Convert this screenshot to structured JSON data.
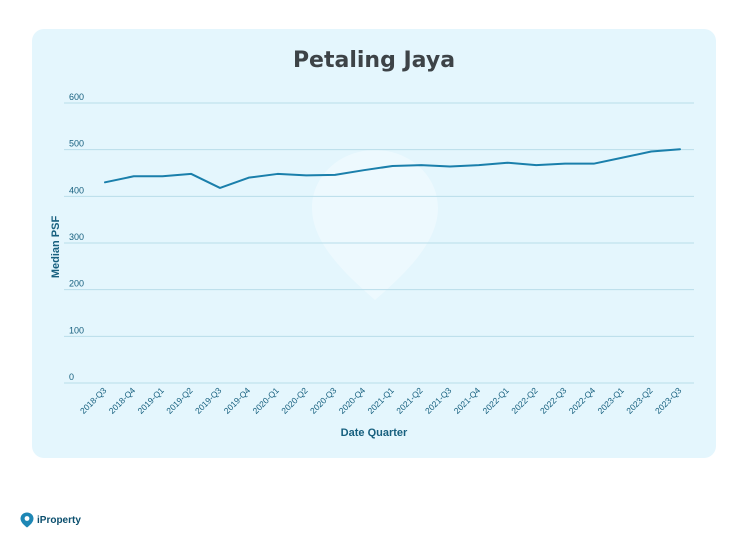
{
  "colors": {
    "card_background": "#e4f6fd",
    "line": "#1a7fab",
    "grid": "#b8dde9",
    "axis_text": "#17607f",
    "title": "#3d4347",
    "brand": "#0b4f6e"
  },
  "brand": {
    "name": "iProperty",
    "icon": "iproperty-logo-icon"
  },
  "chart_data": {
    "type": "line",
    "title": "Petaling Jaya",
    "xlabel": "Date Quarter",
    "ylabel": "Median PSF",
    "ylim": [
      0,
      600
    ],
    "yticks": [
      0,
      100,
      200,
      300,
      400,
      500,
      600
    ],
    "grid": true,
    "categories": [
      "2018-Q3",
      "2018-Q4",
      "2019-Q1",
      "2019-Q2",
      "2019-Q3",
      "2019-Q4",
      "2020-Q1",
      "2020-Q2",
      "2020-Q3",
      "2020-Q4",
      "2021-Q1",
      "2021-Q2",
      "2021-Q3",
      "2021-Q4",
      "2022-Q1",
      "2022-Q2",
      "2022-Q3",
      "2022-Q4",
      "2023-Q1",
      "2023-Q2",
      "2023-Q3"
    ],
    "series": [
      {
        "values": [
          430,
          443,
          443,
          448,
          418,
          440,
          448,
          445,
          446,
          456,
          465,
          467,
          464,
          467,
          472,
          467,
          470,
          470,
          483,
          496,
          501
        ]
      }
    ]
  }
}
